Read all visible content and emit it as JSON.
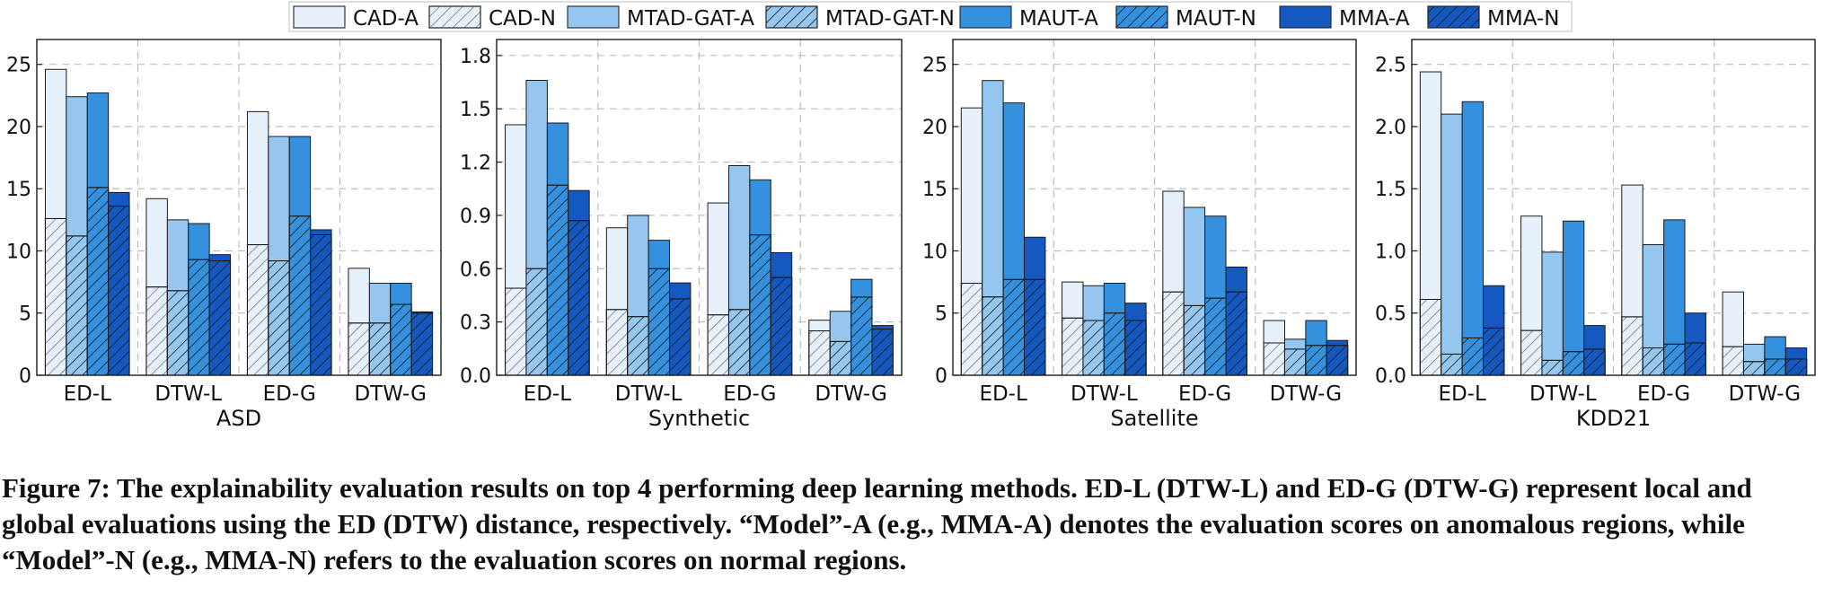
{
  "legend": [
    "CAD-A",
    "CAD-N",
    "MTAD-GAT-A",
    "MTAD-GAT-N",
    "MAUT-A",
    "MAUT-N",
    "MMA-A",
    "MMA-N"
  ],
  "colors": {
    "CAD": "#e5f0fa",
    "MTAD-GAT": "#94c6ef",
    "MAUT": "#3591de",
    "MMA": "#1559c0",
    "hatch_light": "#6b6b6b",
    "hatch_dark": "#1a1a1a",
    "grid": "#bdbdbd"
  },
  "caption": "Figure 7: The explainability evaluation results on top 4 performing deep learning methods. ED-L (DTW-L) and ED-G (DTW-G) represent local and global evaluations using the ED (DTW) distance, respectively. “Model”-A (e.g., MMA-A) denotes the evaluation scores on anomalous regions, while “Model”-N (e.g., MMA-N) refers to the evaluation scores on normal regions.",
  "chart_data": [
    {
      "type": "bar",
      "title": "ASD",
      "categories": [
        "ED-L",
        "DTW-L",
        "ED-G",
        "DTW-G"
      ],
      "yticks": [
        0,
        5,
        10,
        15,
        20,
        25
      ],
      "ytick_labels": [
        "0",
        "5",
        "10",
        "15",
        "20",
        "25"
      ],
      "ylim": [
        0,
        27
      ],
      "grid": true,
      "series": [
        {
          "name": "CAD-A",
          "values": [
            24.6,
            14.2,
            21.2,
            8.6
          ]
        },
        {
          "name": "CAD-N",
          "values": [
            12.6,
            7.1,
            10.5,
            4.2
          ]
        },
        {
          "name": "MTAD-GAT-A",
          "values": [
            22.4,
            12.5,
            19.2,
            7.4
          ]
        },
        {
          "name": "MTAD-GAT-N",
          "values": [
            11.2,
            6.8,
            9.2,
            4.2
          ]
        },
        {
          "name": "MAUT-A",
          "values": [
            22.7,
            12.2,
            19.2,
            7.4
          ]
        },
        {
          "name": "MAUT-N",
          "values": [
            15.1,
            9.3,
            12.8,
            5.7
          ]
        },
        {
          "name": "MMA-A",
          "values": [
            14.7,
            9.7,
            11.7,
            5.1
          ]
        },
        {
          "name": "MMA-N",
          "values": [
            13.6,
            9.2,
            11.3,
            5.0
          ]
        }
      ]
    },
    {
      "type": "bar",
      "title": "Synthetic",
      "categories": [
        "ED-L",
        "DTW-L",
        "ED-G",
        "DTW-G"
      ],
      "yticks": [
        0,
        0.3,
        0.6,
        0.9,
        1.2,
        1.5,
        1.8
      ],
      "ytick_labels": [
        "0.0",
        "0.3",
        "0.6",
        "0.9",
        "1.2",
        "1.5",
        "1.8"
      ],
      "ylim": [
        0,
        1.89
      ],
      "grid": true,
      "series": [
        {
          "name": "CAD-A",
          "values": [
            1.41,
            0.83,
            0.97,
            0.31
          ]
        },
        {
          "name": "CAD-N",
          "values": [
            0.49,
            0.37,
            0.34,
            0.25
          ]
        },
        {
          "name": "MTAD-GAT-A",
          "values": [
            1.66,
            0.9,
            1.18,
            0.36
          ]
        },
        {
          "name": "MTAD-GAT-N",
          "values": [
            0.6,
            0.33,
            0.37,
            0.19
          ]
        },
        {
          "name": "MAUT-A",
          "values": [
            1.42,
            0.76,
            1.1,
            0.54
          ]
        },
        {
          "name": "MAUT-N",
          "values": [
            1.07,
            0.6,
            0.79,
            0.44
          ]
        },
        {
          "name": "MMA-A",
          "values": [
            1.04,
            0.52,
            0.69,
            0.28
          ]
        },
        {
          "name": "MMA-N",
          "values": [
            0.87,
            0.43,
            0.55,
            0.26
          ]
        }
      ]
    },
    {
      "type": "bar",
      "title": "Satellite",
      "categories": [
        "ED-L",
        "DTW-L",
        "ED-G",
        "DTW-G"
      ],
      "yticks": [
        0,
        5,
        10,
        15,
        20,
        25
      ],
      "ytick_labels": [
        "0",
        "5",
        "10",
        "15",
        "20",
        "25"
      ],
      "ylim": [
        0,
        27
      ],
      "grid": true,
      "series": [
        {
          "name": "CAD-A",
          "values": [
            21.5,
            7.5,
            14.8,
            4.4
          ]
        },
        {
          "name": "CAD-N",
          "values": [
            7.4,
            4.6,
            6.7,
            2.6
          ]
        },
        {
          "name": "MTAD-GAT-A",
          "values": [
            23.7,
            7.2,
            13.5,
            2.9
          ]
        },
        {
          "name": "MTAD-GAT-N",
          "values": [
            6.3,
            4.4,
            5.6,
            2.1
          ]
        },
        {
          "name": "MAUT-A",
          "values": [
            21.9,
            7.4,
            12.8,
            4.4
          ]
        },
        {
          "name": "MAUT-N",
          "values": [
            7.7,
            5.0,
            6.2,
            2.4
          ]
        },
        {
          "name": "MMA-A",
          "values": [
            11.1,
            5.8,
            8.7,
            2.8
          ]
        },
        {
          "name": "MMA-N",
          "values": [
            7.7,
            4.4,
            6.7,
            2.4
          ]
        }
      ]
    },
    {
      "type": "bar",
      "title": "KDD21",
      "categories": [
        "ED-L",
        "DTW-L",
        "ED-G",
        "DTW-G"
      ],
      "yticks": [
        0,
        0.5,
        1.0,
        1.5,
        2.0,
        2.5
      ],
      "ytick_labels": [
        "0.0",
        "0.5",
        "1.0",
        "1.5",
        "2.0",
        "2.5"
      ],
      "ylim": [
        0,
        2.7
      ],
      "grid": true,
      "series": [
        {
          "name": "CAD-A",
          "values": [
            2.44,
            1.28,
            1.53,
            0.67
          ]
        },
        {
          "name": "CAD-N",
          "values": [
            0.61,
            0.36,
            0.47,
            0.23
          ]
        },
        {
          "name": "MTAD-GAT-A",
          "values": [
            2.1,
            0.99,
            1.05,
            0.25
          ]
        },
        {
          "name": "MTAD-GAT-N",
          "values": [
            0.17,
            0.12,
            0.22,
            0.11
          ]
        },
        {
          "name": "MAUT-A",
          "values": [
            2.2,
            1.24,
            1.25,
            0.31
          ]
        },
        {
          "name": "MAUT-N",
          "values": [
            0.3,
            0.19,
            0.25,
            0.13
          ]
        },
        {
          "name": "MMA-A",
          "values": [
            0.72,
            0.4,
            0.5,
            0.22
          ]
        },
        {
          "name": "MMA-N",
          "values": [
            0.38,
            0.21,
            0.26,
            0.13
          ]
        }
      ]
    }
  ]
}
